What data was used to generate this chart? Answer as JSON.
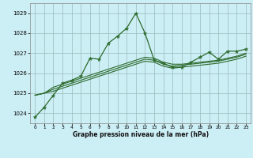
{
  "title": "Graphe pression niveau de la mer (hPa)",
  "bg_color": "#cceef5",
  "grid_color": "#99bbbb",
  "line_color": "#2d6b2d",
  "xlim": [
    -0.5,
    23.5
  ],
  "ylim": [
    1023.5,
    1029.5
  ],
  "yticks": [
    1024,
    1025,
    1026,
    1027,
    1028,
    1029
  ],
  "xticks": [
    0,
    1,
    2,
    3,
    4,
    5,
    6,
    7,
    8,
    9,
    10,
    11,
    12,
    13,
    14,
    15,
    16,
    17,
    18,
    19,
    20,
    21,
    22,
    23
  ],
  "series": [
    [
      1023.8,
      1024.3,
      1024.9,
      1025.5,
      1025.65,
      1025.85,
      1026.75,
      1026.7,
      1027.5,
      1027.85,
      1028.25,
      1029.0,
      1028.0,
      1026.65,
      1026.5,
      1026.3,
      1026.3,
      1026.55,
      1026.8,
      1027.05,
      1026.7,
      1027.1,
      1027.1,
      1027.2
    ],
    [
      1024.9,
      1025.0,
      1025.3,
      1025.45,
      1025.6,
      1025.75,
      1025.9,
      1026.05,
      1026.2,
      1026.35,
      1026.5,
      1026.65,
      1026.8,
      1026.75,
      1026.55,
      1026.45,
      1026.45,
      1026.5,
      1026.55,
      1026.6,
      1026.65,
      1026.75,
      1026.85,
      1027.0
    ],
    [
      1024.9,
      1025.0,
      1025.2,
      1025.35,
      1025.5,
      1025.65,
      1025.8,
      1025.95,
      1026.1,
      1026.25,
      1026.4,
      1026.55,
      1026.7,
      1026.65,
      1026.45,
      1026.35,
      1026.4,
      1026.45,
      1026.5,
      1026.55,
      1026.6,
      1026.7,
      1026.8,
      1026.95
    ],
    [
      1024.9,
      1025.0,
      1025.1,
      1025.25,
      1025.4,
      1025.55,
      1025.7,
      1025.85,
      1026.0,
      1026.15,
      1026.3,
      1026.45,
      1026.6,
      1026.55,
      1026.35,
      1026.25,
      1026.3,
      1026.35,
      1026.4,
      1026.45,
      1026.5,
      1026.6,
      1026.7,
      1026.85
    ]
  ]
}
